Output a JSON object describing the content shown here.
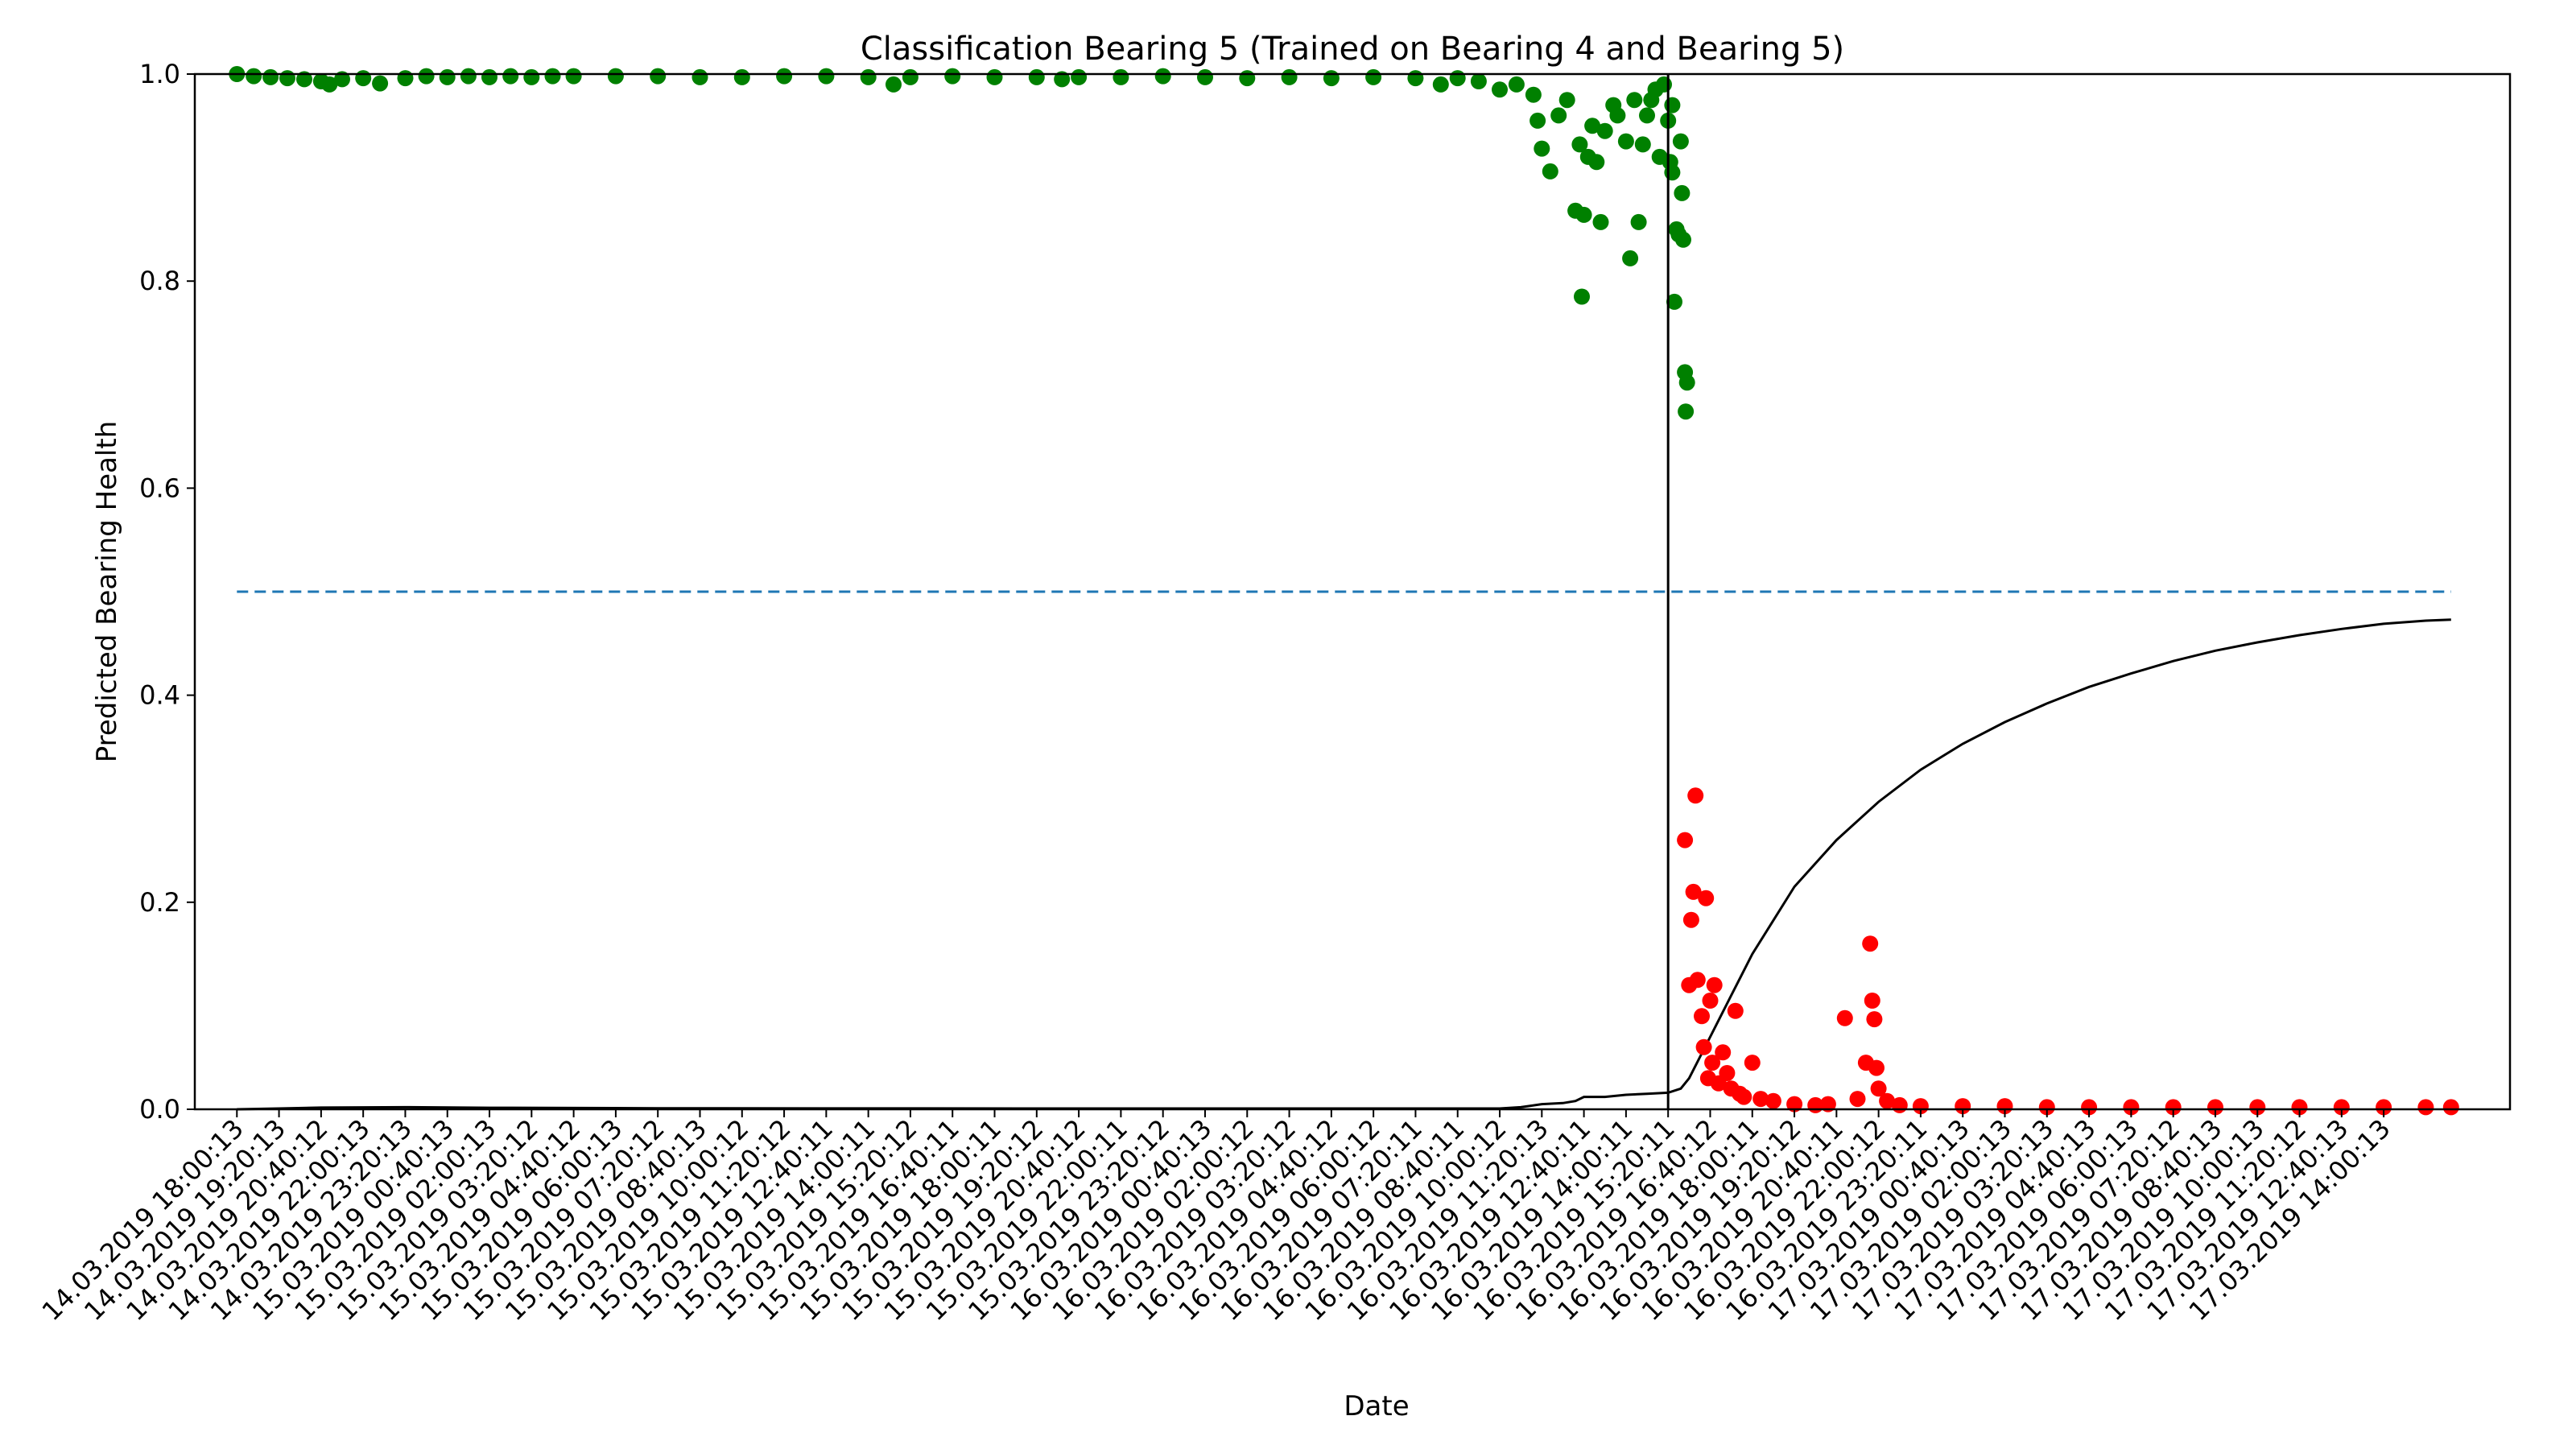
{
  "chart_data": {
    "type": "scatter",
    "title": "Classification Bearing 5 (Trained on Bearing 4 and Bearing 5)",
    "xlabel": "Date",
    "ylabel": "Predicted Bearing Health",
    "ylim": [
      0,
      1
    ],
    "xlim": [
      -1,
      54
    ],
    "yticks": [
      0.0,
      0.2,
      0.4,
      0.6,
      0.8,
      1.0
    ],
    "ytick_labels": [
      "0.0",
      "0.2",
      "0.4",
      "0.6",
      "0.8",
      "1.0"
    ],
    "xtick_labels": [
      "14.03.2019 18:00:13",
      "14.03.2019 19:20:13",
      "14.03.2019 20:40:12",
      "14.03.2019 22:00:13",
      "14.03.2019 23:20:13",
      "15.03.2019 00:40:13",
      "15.03.2019 02:00:13",
      "15.03.2019 03:20:12",
      "15.03.2019 04:40:12",
      "15.03.2019 06:00:13",
      "15.03.2019 07:20:12",
      "15.03.2019 08:40:13",
      "15.03.2019 10:00:12",
      "15.03.2019 11:20:12",
      "15.03.2019 12:40:11",
      "15.03.2019 14:00:11",
      "15.03.2019 15:20:12",
      "15.03.2019 16:40:11",
      "15.03.2019 18:00:11",
      "15.03.2019 19:20:12",
      "15.03.2019 20:40:12",
      "15.03.2019 22:00:11",
      "15.03.2019 23:20:12",
      "16.03.2019 00:40:13",
      "16.03.2019 02:00:12",
      "16.03.2019 03:20:12",
      "16.03.2019 04:40:12",
      "16.03.2019 06:00:12",
      "16.03.2019 07:20:11",
      "16.03.2019 08:40:11",
      "16.03.2019 10:00:12",
      "16.03.2019 11:20:13",
      "16.03.2019 12:40:11",
      "16.03.2019 14:00:11",
      "16.03.2019 15:20:11",
      "16.03.2019 16:40:12",
      "16.03.2019 18:00:11",
      "16.03.2019 19:20:12",
      "16.03.2019 20:40:11",
      "16.03.2019 22:00:12",
      "16.03.2019 23:20:11",
      "17.03.2019 00:40:13",
      "17.03.2019 02:00:13",
      "17.03.2019 03:20:13",
      "17.03.2019 04:40:13",
      "17.03.2019 06:00:13",
      "17.03.2019 07:20:12",
      "17.03.2019 08:40:13",
      "17.03.2019 10:00:13",
      "17.03.2019 11:20:12",
      "17.03.2019 12:40:13",
      "17.03.2019 14:00:13"
    ],
    "threshold": {
      "y": 0.5,
      "x_start": 0,
      "x_end": 52.6,
      "color": "#1f77b4",
      "style": "dashed"
    },
    "failure_marker": {
      "x": 34.0,
      "color": "#000000"
    },
    "series": [
      {
        "color": "#008000",
        "points": [
          [
            0,
            1.0
          ],
          [
            0.4,
            0.998
          ],
          [
            0.8,
            0.997
          ],
          [
            1.2,
            0.996
          ],
          [
            1.6,
            0.995
          ],
          [
            2.0,
            0.993
          ],
          [
            2.2,
            0.99
          ],
          [
            2.5,
            0.995
          ],
          [
            3.0,
            0.996
          ],
          [
            3.4,
            0.991
          ],
          [
            4.0,
            0.996
          ],
          [
            4.5,
            0.998
          ],
          [
            5,
            0.997
          ],
          [
            5.5,
            0.998
          ],
          [
            6,
            0.997
          ],
          [
            6.5,
            0.998
          ],
          [
            7,
            0.997
          ],
          [
            7.5,
            0.998
          ],
          [
            8,
            0.998
          ],
          [
            9,
            0.998
          ],
          [
            10,
            0.998
          ],
          [
            11,
            0.997
          ],
          [
            12,
            0.997
          ],
          [
            13,
            0.998
          ],
          [
            14,
            0.998
          ],
          [
            15,
            0.997
          ],
          [
            15.6,
            0.99
          ],
          [
            16,
            0.997
          ],
          [
            17,
            0.998
          ],
          [
            18,
            0.997
          ],
          [
            19,
            0.997
          ],
          [
            19.6,
            0.995
          ],
          [
            20,
            0.997
          ],
          [
            21,
            0.997
          ],
          [
            22,
            0.998
          ],
          [
            23,
            0.997
          ],
          [
            24,
            0.996
          ],
          [
            25,
            0.997
          ],
          [
            26,
            0.996
          ],
          [
            27,
            0.997
          ],
          [
            28,
            0.996
          ],
          [
            28.6,
            0.99
          ],
          [
            29,
            0.996
          ],
          [
            29.5,
            0.993
          ],
          [
            30,
            0.985
          ],
          [
            30.4,
            0.99
          ],
          [
            30.8,
            0.98
          ],
          [
            30.9,
            0.955
          ],
          [
            31.0,
            0.928
          ],
          [
            31.2,
            0.906
          ],
          [
            31.4,
            0.96
          ],
          [
            31.6,
            0.975
          ],
          [
            31.8,
            0.868
          ],
          [
            31.9,
            0.932
          ],
          [
            31.95,
            0.785
          ],
          [
            32.0,
            0.864
          ],
          [
            32.1,
            0.92
          ],
          [
            32.2,
            0.95
          ],
          [
            32.3,
            0.915
          ],
          [
            32.4,
            0.857
          ],
          [
            32.5,
            0.945
          ],
          [
            32.7,
            0.97
          ],
          [
            32.8,
            0.96
          ],
          [
            33.0,
            0.935
          ],
          [
            33.1,
            0.822
          ],
          [
            33.2,
            0.975
          ],
          [
            33.3,
            0.857
          ],
          [
            33.4,
            0.932
          ],
          [
            33.5,
            0.96
          ],
          [
            33.6,
            0.975
          ],
          [
            33.8,
            0.92
          ],
          [
            33.9,
            0.99
          ],
          [
            34.0,
            0.955
          ],
          [
            34.05,
            0.915
          ],
          [
            34.1,
            0.905
          ],
          [
            34.15,
            0.78
          ],
          [
            34.2,
            0.85
          ],
          [
            34.25,
            0.845
          ],
          [
            34.3,
            0.935
          ],
          [
            34.33,
            0.885
          ],
          [
            34.36,
            0.84
          ],
          [
            34.4,
            0.712
          ],
          [
            34.45,
            0.702
          ],
          [
            34.42,
            0.674
          ],
          [
            34.1,
            0.97
          ],
          [
            33.7,
            0.985
          ]
        ]
      },
      {
        "color": "#ff0000",
        "points": [
          [
            34.4,
            0.26
          ],
          [
            34.5,
            0.12
          ],
          [
            34.55,
            0.183
          ],
          [
            34.6,
            0.21
          ],
          [
            34.65,
            0.303
          ],
          [
            34.7,
            0.125
          ],
          [
            34.8,
            0.09
          ],
          [
            34.85,
            0.06
          ],
          [
            34.9,
            0.204
          ],
          [
            34.95,
            0.03
          ],
          [
            35.0,
            0.105
          ],
          [
            35.05,
            0.045
          ],
          [
            35.1,
            0.12
          ],
          [
            35.2,
            0.025
          ],
          [
            35.3,
            0.055
          ],
          [
            35.4,
            0.035
          ],
          [
            35.5,
            0.02
          ],
          [
            35.6,
            0.095
          ],
          [
            35.7,
            0.015
          ],
          [
            35.8,
            0.012
          ],
          [
            36.0,
            0.045
          ],
          [
            36.2,
            0.01
          ],
          [
            36.5,
            0.008
          ],
          [
            37.0,
            0.005
          ],
          [
            37.5,
            0.004
          ],
          [
            37.8,
            0.005
          ],
          [
            38.2,
            0.088
          ],
          [
            38.5,
            0.01
          ],
          [
            38.7,
            0.045
          ],
          [
            38.8,
            0.16
          ],
          [
            38.85,
            0.105
          ],
          [
            38.9,
            0.087
          ],
          [
            38.95,
            0.04
          ],
          [
            39.0,
            0.02
          ],
          [
            39.2,
            0.008
          ],
          [
            39.5,
            0.004
          ],
          [
            40,
            0.003
          ],
          [
            41,
            0.003
          ],
          [
            42,
            0.003
          ],
          [
            43,
            0.002
          ],
          [
            44,
            0.002
          ],
          [
            45,
            0.002
          ],
          [
            46,
            0.002
          ],
          [
            47,
            0.002
          ],
          [
            48,
            0.002
          ],
          [
            49,
            0.002
          ],
          [
            50,
            0.002
          ],
          [
            51,
            0.002
          ],
          [
            52,
            0.002
          ],
          [
            52.6,
            0.002
          ]
        ]
      }
    ],
    "cumulative_line": {
      "color": "#000000",
      "points": [
        [
          0,
          0.0
        ],
        [
          1,
          0.0008
        ],
        [
          2,
          0.0016
        ],
        [
          4,
          0.002
        ],
        [
          6,
          0.0015
        ],
        [
          10,
          0.001
        ],
        [
          20,
          0.0008
        ],
        [
          30,
          0.0008
        ],
        [
          30.5,
          0.002
        ],
        [
          31,
          0.005
        ],
        [
          31.5,
          0.006
        ],
        [
          31.8,
          0.008
        ],
        [
          32.0,
          0.012
        ],
        [
          32.5,
          0.012
        ],
        [
          33.0,
          0.014
        ],
        [
          33.5,
          0.015
        ],
        [
          34.0,
          0.016
        ],
        [
          34.3,
          0.02
        ],
        [
          34.5,
          0.03
        ],
        [
          35.0,
          0.07
        ],
        [
          35.5,
          0.11
        ],
        [
          36,
          0.15
        ],
        [
          37,
          0.215
        ],
        [
          38,
          0.26
        ],
        [
          39,
          0.297
        ],
        [
          40,
          0.328
        ],
        [
          41,
          0.353
        ],
        [
          42,
          0.374
        ],
        [
          43,
          0.392
        ],
        [
          44,
          0.408
        ],
        [
          45,
          0.421
        ],
        [
          46,
          0.433
        ],
        [
          47,
          0.443
        ],
        [
          48,
          0.451
        ],
        [
          49,
          0.458
        ],
        [
          50,
          0.464
        ],
        [
          51,
          0.469
        ],
        [
          52,
          0.472
        ],
        [
          52.6,
          0.473
        ]
      ]
    }
  }
}
